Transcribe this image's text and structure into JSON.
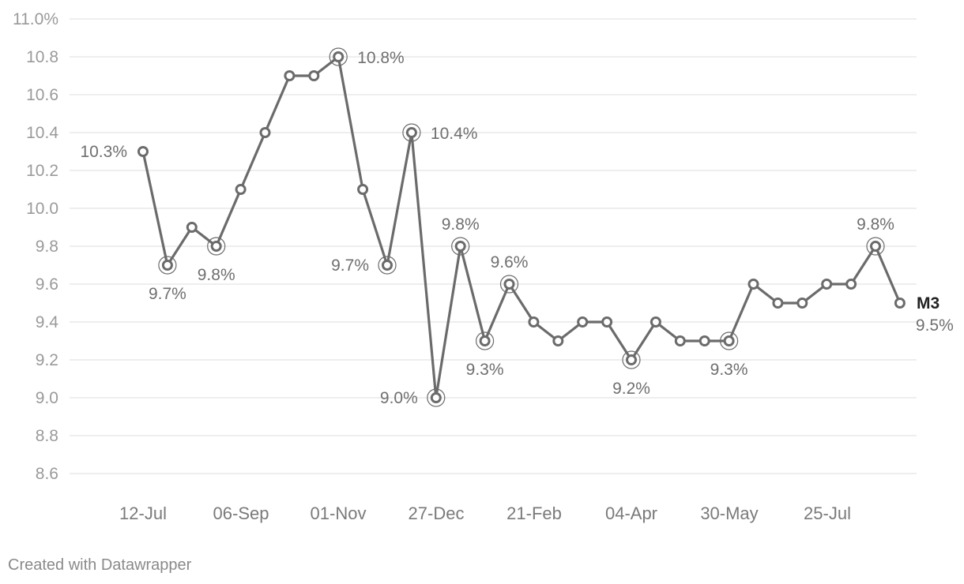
{
  "colors": {
    "line": "#6b6b6b",
    "grid": "#dddddd",
    "marker_fill": "#ffffff",
    "tick_text": "#9a9a9a",
    "label_text": "#6f6f6f"
  },
  "footer": "Created with Datawrapper",
  "chart_data": {
    "type": "line",
    "title": "",
    "xlabel": "",
    "ylabel": "",
    "ylim": [
      8.6,
      11.0
    ],
    "grid": true,
    "y_ticks": [
      "11.0%",
      "10.8",
      "10.6",
      "10.4",
      "10.2",
      "10.0",
      "9.8",
      "9.6",
      "9.4",
      "9.2",
      "9.0",
      "8.8",
      "8.6"
    ],
    "x_ticks": [
      "12-Jul",
      "06-Sep",
      "01-Nov",
      "27-Dec",
      "21-Feb",
      "04-Apr",
      "30-May",
      "25-Jul"
    ],
    "series": [
      {
        "name": "M3",
        "values": [
          10.3,
          9.7,
          9.9,
          9.8,
          10.1,
          10.4,
          10.7,
          10.7,
          10.8,
          10.1,
          9.7,
          10.4,
          9.0,
          9.8,
          9.3,
          9.6,
          9.4,
          9.3,
          9.4,
          9.4,
          9.2,
          9.4,
          9.3,
          9.3,
          9.3,
          9.6,
          9.5,
          9.5,
          9.6,
          9.6,
          9.8,
          9.5
        ]
      }
    ],
    "data_labels": [
      {
        "index": 0,
        "text": "10.3%"
      },
      {
        "index": 1,
        "text": "9.7%"
      },
      {
        "index": 3,
        "text": "9.8%"
      },
      {
        "index": 8,
        "text": "10.8%"
      },
      {
        "index": 10,
        "text": "9.7%"
      },
      {
        "index": 11,
        "text": "10.4%"
      },
      {
        "index": 12,
        "text": "9.0%"
      },
      {
        "index": 13,
        "text": "9.8%"
      },
      {
        "index": 14,
        "text": "9.3%"
      },
      {
        "index": 15,
        "text": "9.6%"
      },
      {
        "index": 20,
        "text": "9.2%"
      },
      {
        "index": 24,
        "text": "9.3%"
      },
      {
        "index": 30,
        "text": "9.8%"
      },
      {
        "index": 31,
        "text": "9.5%"
      }
    ]
  }
}
